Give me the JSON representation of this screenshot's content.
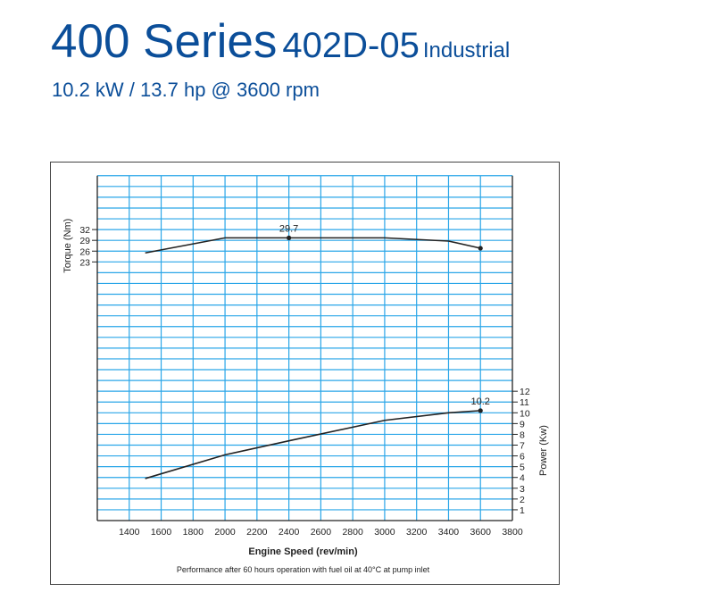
{
  "header": {
    "series": "400 Series",
    "model": "402D-05",
    "application": "Industrial",
    "rating": "10.2 kW / 13.7 hp @ 3600 rpm"
  },
  "chart_data": {
    "type": "line",
    "xlabel": "Engine Speed (rev/min)",
    "xlim": [
      1200,
      3800
    ],
    "xticks": [
      1400,
      1600,
      1800,
      2000,
      2200,
      2400,
      2600,
      2800,
      3000,
      3200,
      3400,
      3600,
      3800
    ],
    "ylabel_left": "Torque (Nm)",
    "yticks_left": [
      23,
      26,
      29,
      32
    ],
    "ylabel_right": "Power (Kw)",
    "yticks_right": [
      1,
      2,
      3,
      4,
      5,
      6,
      7,
      8,
      9,
      10,
      11,
      12
    ],
    "grid": true,
    "series": [
      {
        "name": "Torque",
        "axis": "left",
        "x": [
          1500,
          2000,
          2400,
          3000,
          3400,
          3600
        ],
        "y": [
          25.5,
          29.7,
          29.7,
          29.7,
          28.8,
          26.8
        ],
        "marker_label": {
          "x": 2400,
          "y": 29.7,
          "text": "29.7"
        },
        "end_marker": {
          "x": 3600,
          "y": 26.8
        }
      },
      {
        "name": "Power",
        "axis": "right",
        "x": [
          1500,
          2000,
          2400,
          3000,
          3400,
          3600
        ],
        "y": [
          3.9,
          6.1,
          7.4,
          9.3,
          10.0,
          10.2
        ],
        "marker_label": {
          "x": 3600,
          "y": 10.2,
          "text": "10.2"
        }
      }
    ],
    "footnote": "Performance after 60 hours operation with fuel oil at 40°C at pump inlet",
    "colors": {
      "grid": "#2aa6e8",
      "line": "#222222"
    }
  }
}
